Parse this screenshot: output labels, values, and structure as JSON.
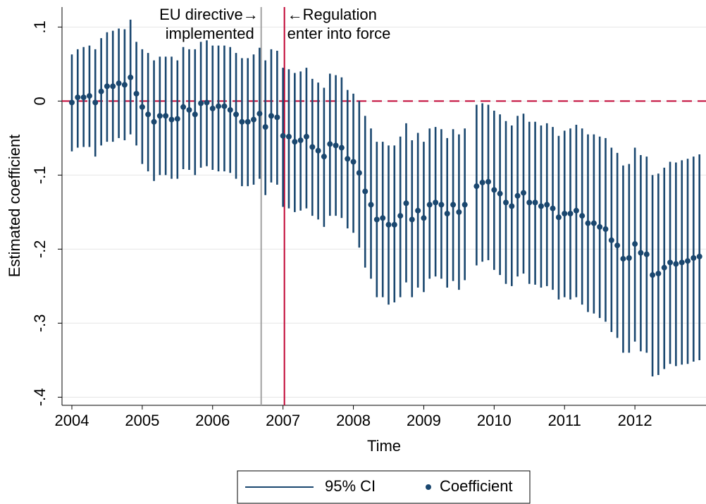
{
  "chart_data": {
    "type": "coefplot",
    "x_label": "Time",
    "y_label": "Estimated coefficient",
    "xlim": [
      2003.86,
      2013.01
    ],
    "xticks": [
      2004,
      2005,
      2006,
      2007,
      2008,
      2009,
      2010,
      2011,
      2012
    ],
    "ylim": [
      -0.411,
      0.127
    ],
    "yticks": [
      {
        "value": -0.4,
        "label": "-.4"
      },
      {
        "value": -0.3,
        "label": "-.3"
      },
      {
        "value": -0.2,
        "label": "-.2"
      },
      {
        "value": -0.1,
        "label": "-.1"
      },
      0,
      {
        "value": 0.1,
        "label": ".1"
      }
    ],
    "grid": true,
    "legend": "bottom",
    "hline": {
      "y": 0,
      "color": "#c10534"
    },
    "vlines": [
      {
        "x": 2006.69,
        "color": "#a0a0a0",
        "label": [
          "EU directive→",
          "implemented"
        ],
        "side": "left"
      },
      {
        "x": 2007.02,
        "color": "#c10534",
        "label": [
          "←Regulation",
          "enter into force"
        ],
        "side": "right"
      }
    ],
    "x": [
      2004,
      2004.083,
      2004.167,
      2004.25,
      2004.333,
      2004.417,
      2004.5,
      2004.583,
      2004.667,
      2004.75,
      2004.833,
      2004.917,
      2005,
      2005.083,
      2005.167,
      2005.25,
      2005.333,
      2005.417,
      2005.5,
      2005.583,
      2005.667,
      2005.75,
      2005.833,
      2005.917,
      2006,
      2006.083,
      2006.167,
      2006.25,
      2006.333,
      2006.417,
      2006.5,
      2006.583,
      2006.667,
      2006.75,
      2006.833,
      2006.917,
      2007,
      2007.083,
      2007.167,
      2007.25,
      2007.333,
      2007.417,
      2007.5,
      2007.583,
      2007.667,
      2007.75,
      2007.833,
      2007.917,
      2008,
      2008.083,
      2008.167,
      2008.25,
      2008.333,
      2008.417,
      2008.5,
      2008.583,
      2008.667,
      2008.75,
      2008.833,
      2008.917,
      2009,
      2009.083,
      2009.167,
      2009.25,
      2009.333,
      2009.417,
      2009.5,
      2009.583,
      2009.667,
      2009.75,
      2009.833,
      2009.917,
      2010,
      2010.083,
      2010.167,
      2010.25,
      2010.333,
      2010.417,
      2010.5,
      2010.583,
      2010.667,
      2010.75,
      2010.833,
      2010.917,
      2011,
      2011.083,
      2011.167,
      2011.25,
      2011.333,
      2011.417,
      2011.5,
      2011.583,
      2011.667,
      2011.75,
      2011.833,
      2011.917,
      2012,
      2012.083,
      2012.167,
      2012.25,
      2012.333,
      2012.417,
      2012.5,
      2012.583,
      2012.667,
      2012.75,
      2012.833,
      2012.917
    ],
    "series": [
      {
        "name": "95% CI",
        "color": "#1a476f",
        "lower": [
          -0.068,
          -0.063,
          -0.062,
          -0.062,
          -0.075,
          -0.06,
          -0.055,
          -0.055,
          -0.05,
          -0.053,
          -0.045,
          -0.06,
          -0.085,
          -0.095,
          -0.108,
          -0.1,
          -0.1,
          -0.105,
          -0.105,
          -0.092,
          -0.093,
          -0.1,
          -0.09,
          -0.088,
          -0.093,
          -0.095,
          -0.095,
          -0.097,
          -0.105,
          -0.115,
          -0.115,
          -0.113,
          -0.105,
          -0.127,
          -0.11,
          -0.113,
          -0.143,
          -0.145,
          -0.15,
          -0.148,
          -0.145,
          -0.155,
          -0.16,
          -0.17,
          -0.155,
          -0.155,
          -0.158,
          -0.172,
          -0.178,
          -0.198,
          -0.225,
          -0.24,
          -0.265,
          -0.265,
          -0.275,
          -0.272,
          -0.265,
          -0.245,
          -0.265,
          -0.252,
          -0.258,
          -0.24,
          -0.237,
          -0.24,
          -0.252,
          -0.243,
          -0.255,
          -0.242,
          null,
          -0.222,
          -0.217,
          -0.215,
          -0.228,
          -0.235,
          -0.247,
          -0.25,
          -0.237,
          -0.233,
          -0.247,
          -0.248,
          -0.252,
          -0.25,
          -0.255,
          -0.268,
          -0.265,
          -0.268,
          -0.265,
          -0.275,
          -0.285,
          -0.287,
          -0.293,
          -0.298,
          -0.312,
          -0.32,
          -0.34,
          -0.34,
          -0.325,
          -0.338,
          -0.34,
          -0.372,
          -0.37,
          -0.362,
          -0.355,
          -0.358,
          -0.356,
          -0.355,
          -0.352,
          -0.35
        ],
        "upper": [
          0.063,
          0.07,
          0.073,
          0.075,
          0.07,
          0.085,
          0.093,
          0.095,
          0.098,
          0.097,
          0.11,
          0.08,
          0.07,
          0.065,
          0.055,
          0.06,
          0.06,
          0.06,
          0.055,
          0.073,
          0.07,
          0.07,
          0.08,
          0.082,
          0.075,
          0.075,
          0.075,
          0.073,
          0.065,
          0.058,
          0.058,
          0.063,
          0.072,
          0.055,
          0.07,
          0.068,
          0.045,
          0.043,
          0.038,
          0.04,
          0.045,
          0.03,
          0.025,
          0.018,
          0.037,
          0.035,
          0.032,
          0.015,
          0.01,
          0.0,
          -0.02,
          -0.037,
          -0.055,
          -0.055,
          -0.06,
          -0.06,
          -0.048,
          -0.03,
          -0.053,
          -0.043,
          -0.055,
          -0.037,
          -0.035,
          -0.038,
          -0.05,
          -0.038,
          -0.045,
          -0.037,
          null,
          -0.005,
          -0.003,
          -0.005,
          -0.013,
          -0.018,
          -0.027,
          -0.033,
          -0.02,
          -0.017,
          -0.028,
          -0.028,
          -0.033,
          -0.03,
          -0.035,
          -0.047,
          -0.04,
          -0.037,
          -0.032,
          -0.037,
          -0.045,
          -0.045,
          -0.048,
          -0.05,
          -0.063,
          -0.07,
          -0.087,
          -0.085,
          -0.063,
          -0.073,
          -0.075,
          -0.1,
          -0.098,
          -0.09,
          -0.082,
          -0.083,
          -0.08,
          -0.078,
          -0.075,
          -0.072
        ]
      },
      {
        "name": "Coefficient",
        "color": "#1a476f",
        "values": [
          -0.002,
          0.005,
          0.005,
          0.007,
          -0.002,
          0.013,
          0.02,
          0.02,
          0.024,
          0.022,
          0.032,
          0.01,
          -0.008,
          -0.018,
          -0.028,
          -0.02,
          -0.02,
          -0.025,
          -0.024,
          -0.008,
          -0.012,
          -0.018,
          -0.003,
          -0.002,
          -0.01,
          -0.007,
          -0.007,
          -0.012,
          -0.018,
          -0.028,
          -0.028,
          -0.025,
          -0.017,
          -0.035,
          -0.02,
          -0.022,
          -0.047,
          -0.048,
          -0.055,
          -0.053,
          -0.048,
          -0.062,
          -0.067,
          -0.075,
          -0.058,
          -0.06,
          -0.063,
          -0.078,
          -0.082,
          -0.097,
          -0.122,
          -0.14,
          -0.16,
          -0.158,
          -0.167,
          -0.167,
          -0.155,
          -0.138,
          -0.16,
          -0.148,
          -0.158,
          -0.14,
          -0.137,
          -0.14,
          -0.152,
          -0.14,
          -0.15,
          -0.14,
          null,
          -0.115,
          -0.11,
          -0.109,
          -0.12,
          -0.125,
          -0.137,
          -0.142,
          -0.128,
          -0.124,
          -0.137,
          -0.137,
          -0.142,
          -0.14,
          -0.145,
          -0.157,
          -0.152,
          -0.152,
          -0.148,
          -0.155,
          -0.165,
          -0.165,
          -0.17,
          -0.173,
          -0.188,
          -0.195,
          -0.213,
          -0.212,
          -0.193,
          -0.205,
          -0.207,
          -0.235,
          -0.233,
          -0.225,
          -0.218,
          -0.22,
          -0.218,
          -0.216,
          -0.212,
          -0.21
        ]
      }
    ]
  }
}
